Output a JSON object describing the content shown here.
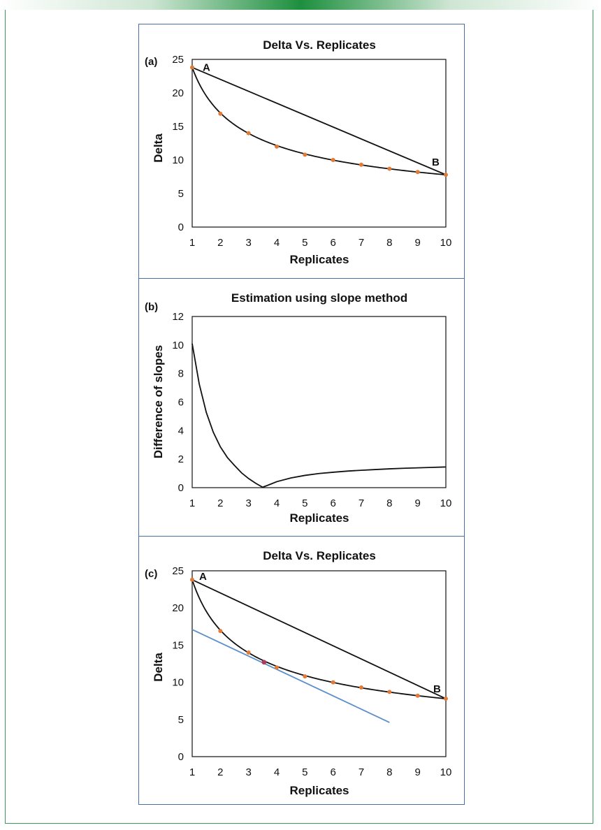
{
  "chart_data": [
    {
      "type": "scatter",
      "panel_label": "(a)",
      "title": "Delta Vs. Replicates",
      "xlabel": "Replicates",
      "ylabel": "Delta",
      "xlim": [
        1,
        10
      ],
      "ylim": [
        0,
        25
      ],
      "x_ticks": [
        1,
        2,
        3,
        4,
        5,
        6,
        7,
        8,
        9,
        10
      ],
      "y_ticks": [
        0,
        5,
        10,
        15,
        20,
        25
      ],
      "point_color": "#e07b39",
      "line_color": "#111111",
      "points": {
        "x": [
          1,
          2,
          3,
          4,
          5,
          6,
          7,
          8,
          9,
          10
        ],
        "y": [
          23.8,
          16.9,
          14.0,
          12.0,
          10.8,
          10.0,
          9.3,
          8.7,
          8.2,
          7.8
        ]
      },
      "fitted_curve": {
        "equation": "y = 23.8 * x^(-0.485)",
        "x_range": [
          1,
          10
        ]
      },
      "chord": {
        "from": [
          1,
          23.8
        ],
        "to": [
          10,
          7.8
        ]
      },
      "annotations": [
        {
          "text": "A",
          "x": 1,
          "y": 23.8
        },
        {
          "text": "B",
          "x": 10,
          "y": 7.8
        }
      ]
    },
    {
      "type": "line",
      "panel_label": "(b)",
      "title": "Estimation using slope method",
      "xlabel": "Replicates",
      "ylabel": "Difference of slopes",
      "xlim": [
        1,
        10
      ],
      "ylim": [
        0,
        12
      ],
      "x_ticks": [
        1,
        2,
        3,
        4,
        5,
        6,
        7,
        8,
        9,
        10
      ],
      "y_ticks": [
        0,
        2,
        4,
        6,
        8,
        10,
        12
      ],
      "line_color": "#111111",
      "series": [
        {
          "name": "Difference of slopes",
          "x": [
            1,
            1.25,
            1.5,
            1.75,
            2,
            2.25,
            2.5,
            2.75,
            3,
            3.25,
            3.5,
            3.75,
            4,
            4.5,
            5,
            5.5,
            6,
            6.5,
            7,
            7.5,
            8,
            8.5,
            9,
            9.5,
            10
          ],
          "y": [
            10.1,
            7.27,
            5.28,
            3.88,
            2.86,
            2.11,
            1.56,
            1.04,
            0.64,
            0.31,
            0.03,
            0.22,
            0.42,
            0.68,
            0.86,
            0.99,
            1.08,
            1.16,
            1.22,
            1.27,
            1.32,
            1.36,
            1.39,
            1.42,
            1.45
          ]
        }
      ]
    },
    {
      "type": "scatter",
      "panel_label": "(c)",
      "title": "Delta Vs. Replicates",
      "xlabel": "Replicates",
      "ylabel": "Delta",
      "xlim": [
        1,
        10
      ],
      "ylim": [
        0,
        25
      ],
      "x_ticks": [
        1,
        2,
        3,
        4,
        5,
        6,
        7,
        8,
        9,
        10
      ],
      "y_ticks": [
        0,
        5,
        10,
        15,
        20,
        25
      ],
      "point_color": "#e07b39",
      "tangent_point_color": "#b03a5a",
      "line_color": "#111111",
      "tangent_color": "#5b8fc9",
      "points": {
        "x": [
          1,
          2,
          3,
          4,
          5,
          6,
          7,
          8,
          9,
          10
        ],
        "y": [
          23.8,
          16.9,
          14.0,
          12.0,
          10.8,
          10.0,
          9.3,
          8.7,
          8.2,
          7.8
        ]
      },
      "fitted_curve": {
        "equation": "y = 23.8 * x^(-0.485)",
        "x_range": [
          1,
          10
        ]
      },
      "chord": {
        "from": [
          1,
          23.8
        ],
        "to": [
          10,
          7.8
        ]
      },
      "tangent_line": {
        "from": [
          1,
          17.1
        ],
        "to": [
          8,
          4.6
        ]
      },
      "tangent_point": {
        "x": 3.55,
        "y": 12.7
      },
      "annotations": [
        {
          "text": "A",
          "x": 1,
          "y": 23.8
        },
        {
          "text": "B",
          "x": 10,
          "y": 7.8
        }
      ]
    }
  ]
}
